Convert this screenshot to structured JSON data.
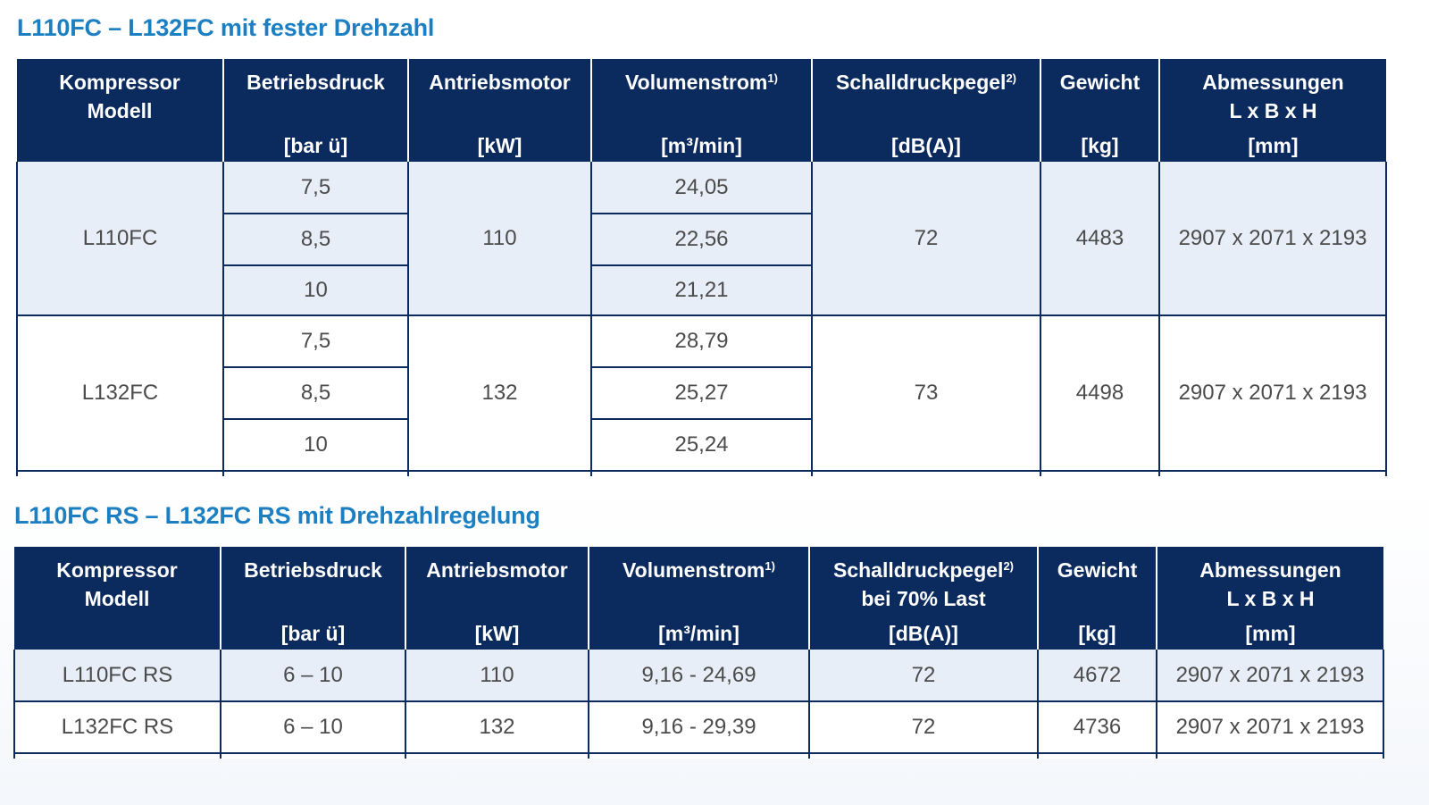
{
  "table1": {
    "title": "L110FC – L132FC mit fester Drehzahl",
    "headers": {
      "modell_line1": "Kompressor",
      "modell_line2": "Modell",
      "druck": "Betriebsdruck",
      "druck_unit": "[bar ü]",
      "motor": "Antriebsmotor",
      "motor_unit": "[kW]",
      "volumen": "Volumenstrom",
      "volumen_sup": "1)",
      "volumen_unit": "[m³/min]",
      "schall": "Schalldruckpegel",
      "schall_sup": "2)",
      "schall_unit": "[dB(A)]",
      "gewicht": "Gewicht",
      "gewicht_unit": "[kg]",
      "abm_line1": "Abmessungen",
      "abm_line2": "L x B x H",
      "abm_unit": "[mm]"
    },
    "groups": [
      {
        "modell": "L110FC",
        "motor": "110",
        "schall": "72",
        "gewicht": "4483",
        "abm": "2907 x 2071 x 2193",
        "druck": [
          "7,5",
          "8,5",
          "10"
        ],
        "volumen": [
          "24,05",
          "22,56",
          "21,21"
        ]
      },
      {
        "modell": "L132FC",
        "motor": "132",
        "schall": "73",
        "gewicht": "4498",
        "abm": "2907 x 2071 x 2193",
        "druck": [
          "7,5",
          "8,5",
          "10"
        ],
        "volumen": [
          "28,79",
          "25,27",
          "25,24"
        ]
      }
    ]
  },
  "table2": {
    "title": "L110FC RS – L132FC RS mit Drehzahlregelung",
    "headers": {
      "modell_line1": "Kompressor",
      "modell_line2": "Modell",
      "druck": "Betriebsdruck",
      "druck_unit": "[bar ü]",
      "motor": "Antriebsmotor",
      "motor_unit": "[kW]",
      "volumen": "Volumenstrom",
      "volumen_sup": "1)",
      "volumen_unit": "[m³/min]",
      "schall": "Schalldruckpegel",
      "schall_sup": "2)",
      "schall_line2": "bei 70% Last",
      "schall_unit": "[dB(A)]",
      "gewicht": "Gewicht",
      "gewicht_unit": "[kg]",
      "abm_line1": "Abmessungen",
      "abm_line2": "L x B x H",
      "abm_unit": "[mm]"
    },
    "rows": [
      {
        "modell": "L110FC RS",
        "druck": "6 – 10",
        "motor": "110",
        "volumen": "9,16 - 24,69",
        "schall": "72",
        "gewicht": "4672",
        "abm": "2907 x 2071 x 2193"
      },
      {
        "modell": "L132FC RS",
        "druck": "6 – 10",
        "motor": "132",
        "volumen": "9,16 - 29,39",
        "schall": "72",
        "gewicht": "4736",
        "abm": "2907 x 2071 x 2193"
      }
    ]
  }
}
